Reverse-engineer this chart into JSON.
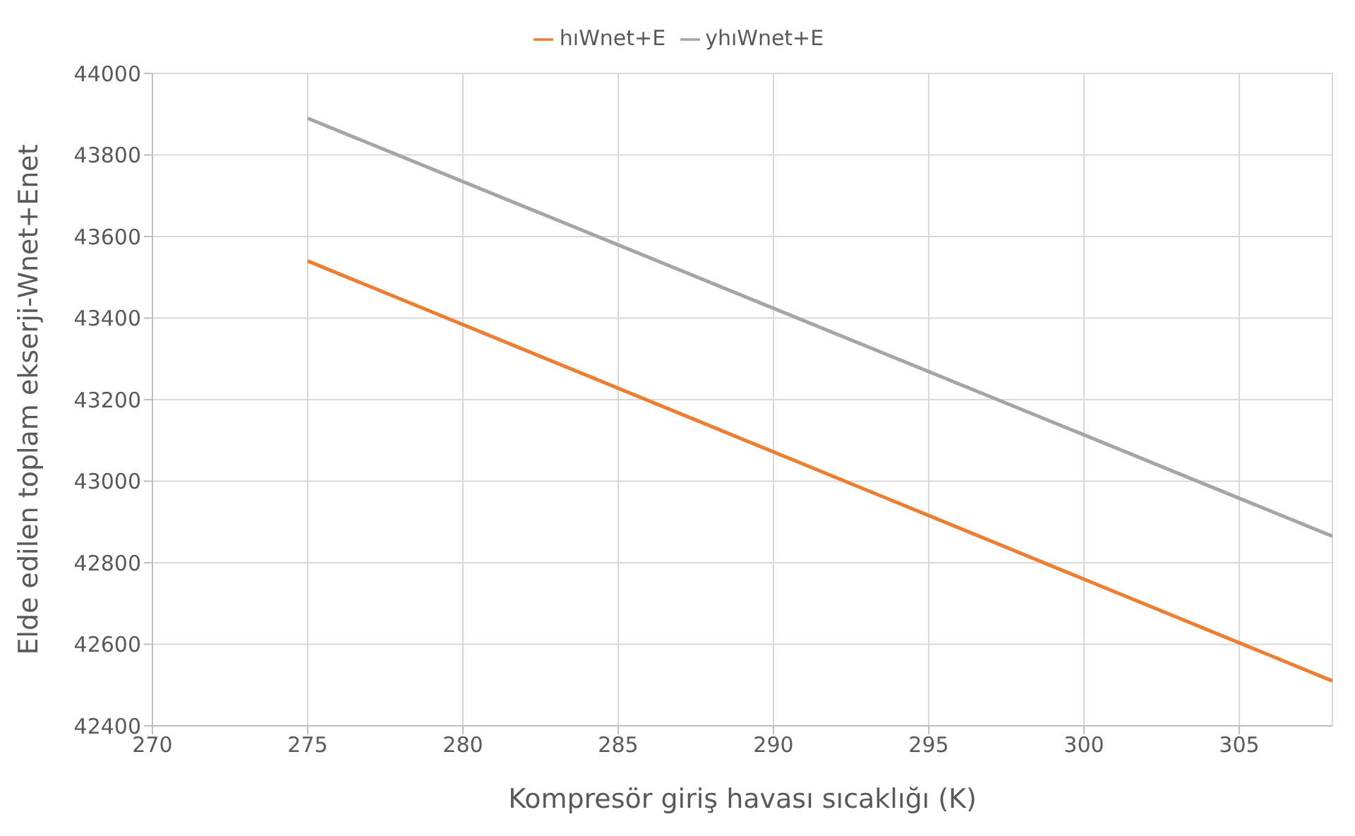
{
  "chart_data": {
    "type": "line",
    "xlabel": "Kompresör giriş havası sıcaklığı (K)",
    "ylabel": "Elde edilen toplam ekserji-Wnet+Enet",
    "x": [
      275,
      308
    ],
    "series": [
      {
        "name": "hıWnet+E",
        "color": "#ed7d31",
        "values": [
          43540,
          42510
        ]
      },
      {
        "name": "yhıWnet+E",
        "color": "#a5a5a5",
        "values": [
          43890,
          42865
        ]
      }
    ],
    "xlim": [
      270,
      308
    ],
    "xticks": [
      270,
      275,
      280,
      285,
      290,
      295,
      300,
      305
    ],
    "ylim": [
      42400,
      44000
    ],
    "yticks": [
      42400,
      42600,
      42800,
      43000,
      43200,
      43400,
      43600,
      43800,
      44000
    ],
    "grid": true,
    "legend": "top",
    "marker": "none",
    "line_style": "solid"
  }
}
